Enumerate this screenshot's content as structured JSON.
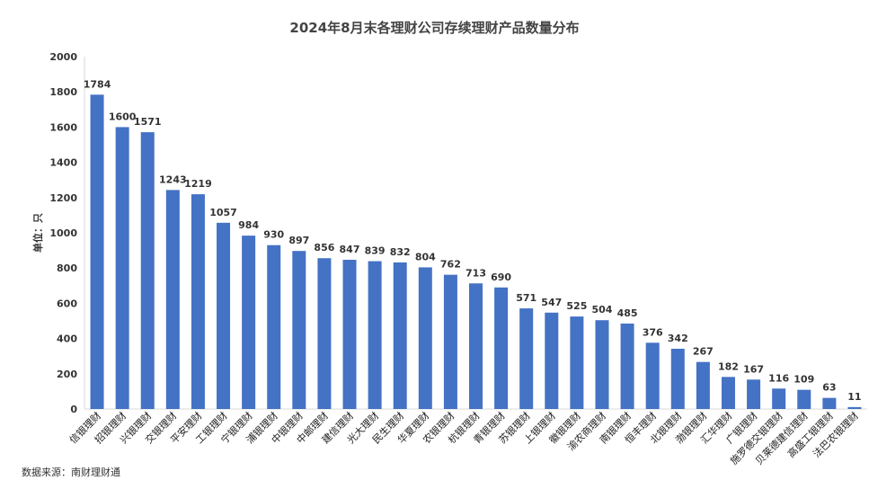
{
  "chart_data": {
    "type": "bar",
    "title": "2024年8月末各理财公司存续理财产品数量分布",
    "ylabel": "单位：只",
    "xlabel": "",
    "ylim": [
      0,
      2000
    ],
    "yticks": [
      0,
      200,
      400,
      600,
      800,
      1000,
      1200,
      1400,
      1600,
      1800,
      2000
    ],
    "grid": false,
    "legend": "none",
    "bar_color": "#4472C4",
    "categories": [
      "信银理财",
      "招银理财",
      "兴银理财",
      "交银理财",
      "平安理财",
      "工银理财",
      "宁银理财",
      "浦银理财",
      "中银理财",
      "中邮理财",
      "建信理财",
      "光大理财",
      "民生理财",
      "华夏理财",
      "农银理财",
      "杭银理财",
      "青银理财",
      "苏银理财",
      "上银理财",
      "徽银理财",
      "渝农商理财",
      "南银理财",
      "恒丰理财",
      "北银理财",
      "渤银理财",
      "汇华理财",
      "广银理财",
      "施罗德交银理财",
      "贝莱德建信理财",
      "高盛工银理财",
      "法巴农银理财"
    ],
    "values": [
      1784,
      1600,
      1571,
      1243,
      1219,
      1057,
      984,
      930,
      897,
      856,
      847,
      839,
      832,
      804,
      762,
      713,
      690,
      571,
      547,
      525,
      504,
      485,
      376,
      342,
      267,
      182,
      167,
      116,
      109,
      63,
      11
    ]
  },
  "source": "数据来源：南财理财通"
}
